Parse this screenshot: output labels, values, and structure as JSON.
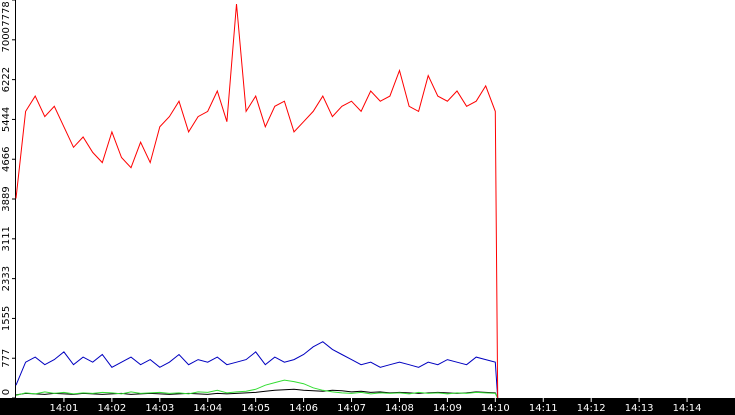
{
  "chart_data": {
    "type": "line",
    "x": [
      0,
      0.2,
      0.4,
      0.6,
      0.8,
      1.0,
      1.2,
      1.4,
      1.6,
      1.8,
      2.0,
      2.2,
      2.4,
      2.6,
      2.8,
      3.0,
      3.2,
      3.4,
      3.6,
      3.8,
      4.0,
      4.2,
      4.4,
      4.6,
      4.8,
      5.0,
      5.2,
      5.4,
      5.6,
      5.8,
      6.0,
      6.2,
      6.4,
      6.6,
      6.8,
      7.0,
      7.2,
      7.4,
      7.6,
      7.8,
      8.0,
      8.2,
      8.4,
      8.6,
      8.8,
      9.0,
      9.2,
      9.4,
      9.6,
      9.8,
      10.0,
      10.05
    ],
    "series": [
      {
        "color": "#ff0000",
        "values": [
          3900,
          5600,
          5900,
          5500,
          5700,
          5300,
          4900,
          5100,
          4800,
          4600,
          5200,
          4700,
          4500,
          5000,
          4600,
          5300,
          5500,
          5800,
          5200,
          5500,
          5600,
          6000,
          5400,
          7700,
          5600,
          5900,
          5300,
          5700,
          5800,
          5200,
          5400,
          5600,
          5900,
          5500,
          5700,
          5800,
          5600,
          6000,
          5800,
          5900,
          6400,
          5700,
          5600,
          6300,
          5900,
          5800,
          6000,
          5700,
          5800,
          6100,
          5600,
          0
        ]
      },
      {
        "color": "#0000c0",
        "values": [
          250,
          700,
          800,
          650,
          750,
          900,
          650,
          800,
          700,
          850,
          600,
          700,
          800,
          650,
          750,
          600,
          700,
          850,
          650,
          750,
          700,
          800,
          650,
          700,
          750,
          900,
          650,
          800,
          700,
          750,
          850,
          1000,
          1100,
          950,
          850,
          750,
          650,
          700,
          600,
          650,
          700,
          650,
          600,
          700,
          650,
          750,
          700,
          650,
          800,
          750,
          700,
          0
        ]
      },
      {
        "color": "#33dd33",
        "values": [
          50,
          100,
          80,
          120,
          90,
          110,
          80,
          100,
          90,
          110,
          100,
          80,
          120,
          90,
          100,
          110,
          90,
          100,
          80,
          120,
          110,
          150,
          100,
          120,
          130,
          170,
          250,
          300,
          350,
          320,
          280,
          200,
          150,
          120,
          100,
          90,
          110,
          80,
          100,
          90,
          100,
          80,
          110,
          90,
          100,
          80,
          100,
          90,
          110,
          100,
          90,
          0
        ]
      },
      {
        "color": "#000000",
        "values": [
          60,
          90,
          80,
          70,
          90,
          80,
          70,
          90,
          80,
          70,
          80,
          90,
          70,
          80,
          90,
          80,
          70,
          80,
          90,
          80,
          70,
          90,
          80,
          90,
          100,
          110,
          130,
          150,
          160,
          170,
          150,
          140,
          130,
          150,
          140,
          120,
          130,
          110,
          120,
          100,
          110,
          100,
          90,
          100,
          110,
          100,
          90,
          100,
          120,
          110,
          100,
          0
        ]
      }
    ],
    "xlim": [
      0,
      15
    ],
    "xticks": [
      {
        "value": 1,
        "label": "14:01"
      },
      {
        "value": 2,
        "label": "14:02"
      },
      {
        "value": 3,
        "label": "14:03"
      },
      {
        "value": 4,
        "label": "14:04"
      },
      {
        "value": 5,
        "label": "14:05"
      },
      {
        "value": 6,
        "label": "14:06"
      },
      {
        "value": 7,
        "label": "14:07"
      },
      {
        "value": 8,
        "label": "14:08"
      },
      {
        "value": 9,
        "label": "14:09"
      },
      {
        "value": 10,
        "label": "14:10"
      },
      {
        "value": 11,
        "label": "14:11"
      },
      {
        "value": 12,
        "label": "14:12"
      },
      {
        "value": 13,
        "label": "14:13"
      },
      {
        "value": 14,
        "label": "14:14"
      }
    ],
    "ylim": [
      0,
      7778
    ],
    "yticks": [
      0,
      777,
      1555,
      2333,
      3111,
      3889,
      4666,
      5444,
      6222,
      7000,
      7778
    ]
  }
}
